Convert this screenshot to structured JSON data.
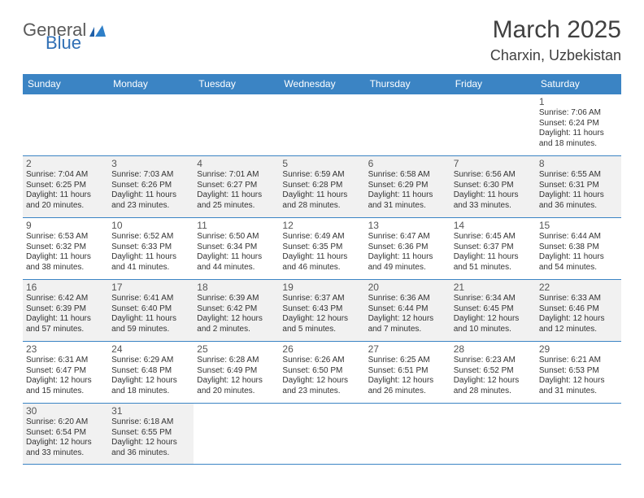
{
  "brand": {
    "part1": "General",
    "part2": "Blue"
  },
  "title": "March 2025",
  "location": "Charxin, Uzbekistan",
  "header_bg": "#3b84c4",
  "text_color": "#333333",
  "shade_bg": "#f1f1f1",
  "weekdays": [
    "Sunday",
    "Monday",
    "Tuesday",
    "Wednesday",
    "Thursday",
    "Friday",
    "Saturday"
  ],
  "leading_blank": 6,
  "days": [
    {
      "n": 1,
      "sunrise": "7:06 AM",
      "sunset": "6:24 PM",
      "daylight": "11 hours and 18 minutes."
    },
    {
      "n": 2,
      "sunrise": "7:04 AM",
      "sunset": "6:25 PM",
      "daylight": "11 hours and 20 minutes."
    },
    {
      "n": 3,
      "sunrise": "7:03 AM",
      "sunset": "6:26 PM",
      "daylight": "11 hours and 23 minutes."
    },
    {
      "n": 4,
      "sunrise": "7:01 AM",
      "sunset": "6:27 PM",
      "daylight": "11 hours and 25 minutes."
    },
    {
      "n": 5,
      "sunrise": "6:59 AM",
      "sunset": "6:28 PM",
      "daylight": "11 hours and 28 minutes."
    },
    {
      "n": 6,
      "sunrise": "6:58 AM",
      "sunset": "6:29 PM",
      "daylight": "11 hours and 31 minutes."
    },
    {
      "n": 7,
      "sunrise": "6:56 AM",
      "sunset": "6:30 PM",
      "daylight": "11 hours and 33 minutes."
    },
    {
      "n": 8,
      "sunrise": "6:55 AM",
      "sunset": "6:31 PM",
      "daylight": "11 hours and 36 minutes."
    },
    {
      "n": 9,
      "sunrise": "6:53 AM",
      "sunset": "6:32 PM",
      "daylight": "11 hours and 38 minutes."
    },
    {
      "n": 10,
      "sunrise": "6:52 AM",
      "sunset": "6:33 PM",
      "daylight": "11 hours and 41 minutes."
    },
    {
      "n": 11,
      "sunrise": "6:50 AM",
      "sunset": "6:34 PM",
      "daylight": "11 hours and 44 minutes."
    },
    {
      "n": 12,
      "sunrise": "6:49 AM",
      "sunset": "6:35 PM",
      "daylight": "11 hours and 46 minutes."
    },
    {
      "n": 13,
      "sunrise": "6:47 AM",
      "sunset": "6:36 PM",
      "daylight": "11 hours and 49 minutes."
    },
    {
      "n": 14,
      "sunrise": "6:45 AM",
      "sunset": "6:37 PM",
      "daylight": "11 hours and 51 minutes."
    },
    {
      "n": 15,
      "sunrise": "6:44 AM",
      "sunset": "6:38 PM",
      "daylight": "11 hours and 54 minutes."
    },
    {
      "n": 16,
      "sunrise": "6:42 AM",
      "sunset": "6:39 PM",
      "daylight": "11 hours and 57 minutes."
    },
    {
      "n": 17,
      "sunrise": "6:41 AM",
      "sunset": "6:40 PM",
      "daylight": "11 hours and 59 minutes."
    },
    {
      "n": 18,
      "sunrise": "6:39 AM",
      "sunset": "6:42 PM",
      "daylight": "12 hours and 2 minutes."
    },
    {
      "n": 19,
      "sunrise": "6:37 AM",
      "sunset": "6:43 PM",
      "daylight": "12 hours and 5 minutes."
    },
    {
      "n": 20,
      "sunrise": "6:36 AM",
      "sunset": "6:44 PM",
      "daylight": "12 hours and 7 minutes."
    },
    {
      "n": 21,
      "sunrise": "6:34 AM",
      "sunset": "6:45 PM",
      "daylight": "12 hours and 10 minutes."
    },
    {
      "n": 22,
      "sunrise": "6:33 AM",
      "sunset": "6:46 PM",
      "daylight": "12 hours and 12 minutes."
    },
    {
      "n": 23,
      "sunrise": "6:31 AM",
      "sunset": "6:47 PM",
      "daylight": "12 hours and 15 minutes."
    },
    {
      "n": 24,
      "sunrise": "6:29 AM",
      "sunset": "6:48 PM",
      "daylight": "12 hours and 18 minutes."
    },
    {
      "n": 25,
      "sunrise": "6:28 AM",
      "sunset": "6:49 PM",
      "daylight": "12 hours and 20 minutes."
    },
    {
      "n": 26,
      "sunrise": "6:26 AM",
      "sunset": "6:50 PM",
      "daylight": "12 hours and 23 minutes."
    },
    {
      "n": 27,
      "sunrise": "6:25 AM",
      "sunset": "6:51 PM",
      "daylight": "12 hours and 26 minutes."
    },
    {
      "n": 28,
      "sunrise": "6:23 AM",
      "sunset": "6:52 PM",
      "daylight": "12 hours and 28 minutes."
    },
    {
      "n": 29,
      "sunrise": "6:21 AM",
      "sunset": "6:53 PM",
      "daylight": "12 hours and 31 minutes."
    },
    {
      "n": 30,
      "sunrise": "6:20 AM",
      "sunset": "6:54 PM",
      "daylight": "12 hours and 33 minutes."
    },
    {
      "n": 31,
      "sunrise": "6:18 AM",
      "sunset": "6:55 PM",
      "daylight": "12 hours and 36 minutes."
    }
  ],
  "labels": {
    "sunrise_prefix": "Sunrise: ",
    "sunset_prefix": "Sunset: ",
    "daylight_prefix": "Daylight: "
  }
}
